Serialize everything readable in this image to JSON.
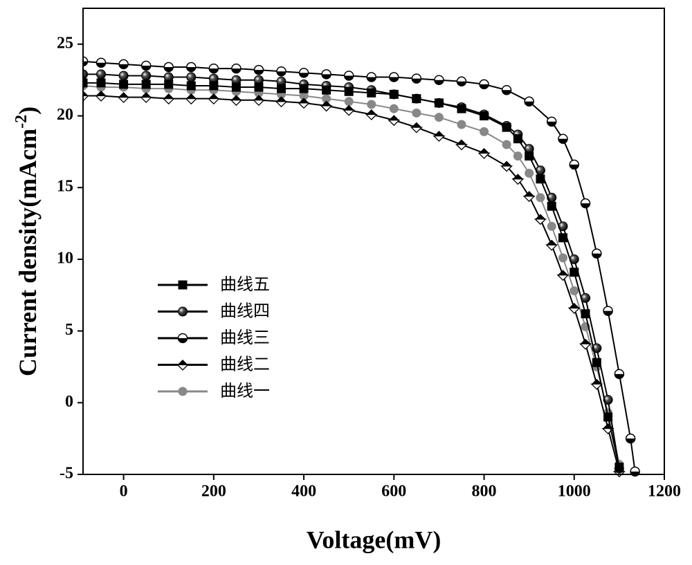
{
  "chart_data": {
    "type": "line",
    "xlabel": "Voltage(mV)",
    "ylabel": {
      "text": "Current density(mAcm",
      "sup": "-2",
      "end": ")"
    },
    "xlim": [
      -90,
      1200
    ],
    "ylim": [
      -5,
      27.5
    ],
    "xticks": [
      0,
      200,
      400,
      600,
      800,
      1000,
      1200
    ],
    "yticks": [
      -5,
      0,
      5,
      10,
      15,
      20,
      25
    ],
    "legend": "center-left",
    "series": [
      {
        "name": "曲线五",
        "color": "#000000",
        "marker": "square",
        "x": [
          -90,
          -50,
          0,
          50,
          100,
          150,
          200,
          250,
          300,
          350,
          400,
          450,
          500,
          550,
          600,
          650,
          700,
          750,
          800,
          850,
          875,
          900,
          925,
          950,
          975,
          1000,
          1025,
          1050,
          1075,
          1100
        ],
        "values": [
          22.3,
          22.3,
          22.2,
          22.2,
          22.2,
          22.1,
          22.1,
          22.0,
          22.0,
          21.9,
          21.9,
          21.8,
          21.7,
          21.6,
          21.5,
          21.2,
          20.9,
          20.5,
          20.0,
          19.2,
          18.4,
          17.2,
          15.6,
          13.7,
          11.5,
          9.1,
          6.2,
          2.8,
          -1.0,
          -4.5
        ]
      },
      {
        "name": "曲线四",
        "color": "#000000",
        "marker": "ball",
        "x": [
          -90,
          -50,
          0,
          50,
          100,
          150,
          200,
          250,
          300,
          350,
          400,
          450,
          500,
          550,
          600,
          650,
          700,
          750,
          800,
          850,
          875,
          900,
          925,
          950,
          975,
          1000,
          1025,
          1050,
          1075,
          1100
        ],
        "values": [
          22.9,
          22.9,
          22.8,
          22.8,
          22.7,
          22.7,
          22.6,
          22.5,
          22.5,
          22.4,
          22.2,
          22.1,
          22.0,
          21.8,
          21.5,
          21.2,
          20.9,
          20.6,
          20.1,
          19.3,
          18.7,
          17.7,
          16.2,
          14.3,
          12.3,
          10.0,
          7.3,
          3.8,
          0.2,
          -4.6
        ]
      },
      {
        "name": "曲线三",
        "color": "#000000",
        "marker": "halfcircle",
        "x": [
          -90,
          -50,
          0,
          50,
          100,
          150,
          200,
          250,
          300,
          350,
          400,
          450,
          500,
          550,
          600,
          650,
          700,
          750,
          800,
          850,
          900,
          950,
          975,
          1000,
          1025,
          1050,
          1075,
          1100,
          1125,
          1135
        ],
        "values": [
          23.8,
          23.7,
          23.6,
          23.5,
          23.4,
          23.4,
          23.3,
          23.3,
          23.2,
          23.1,
          23.0,
          22.9,
          22.8,
          22.7,
          22.7,
          22.6,
          22.5,
          22.4,
          22.2,
          21.8,
          21.0,
          19.6,
          18.4,
          16.6,
          13.9,
          10.4,
          6.4,
          2.0,
          -2.5,
          -4.8
        ]
      },
      {
        "name": "曲线二",
        "color": "#000000",
        "marker": "diamond",
        "x": [
          -90,
          -50,
          0,
          50,
          100,
          150,
          200,
          250,
          300,
          350,
          400,
          450,
          500,
          550,
          600,
          650,
          700,
          750,
          800,
          850,
          875,
          900,
          925,
          950,
          975,
          1000,
          1025,
          1050,
          1075,
          1100
        ],
        "values": [
          21.4,
          21.4,
          21.3,
          21.3,
          21.2,
          21.2,
          21.2,
          21.1,
          21.1,
          21.0,
          20.9,
          20.7,
          20.4,
          20.1,
          19.7,
          19.2,
          18.6,
          18.0,
          17.4,
          16.5,
          15.6,
          14.4,
          12.8,
          11.0,
          8.9,
          6.6,
          4.1,
          1.3,
          -1.8,
          -4.8
        ]
      },
      {
        "name": "曲线一",
        "color": "#888888",
        "marker": "circle",
        "x": [
          -90,
          -50,
          0,
          50,
          100,
          150,
          200,
          250,
          300,
          350,
          400,
          450,
          500,
          550,
          600,
          650,
          700,
          750,
          800,
          850,
          875,
          900,
          925,
          950,
          975,
          1000,
          1025,
          1050,
          1075,
          1100
        ],
        "values": [
          22.1,
          22.0,
          22.0,
          21.9,
          21.9,
          21.8,
          21.8,
          21.7,
          21.6,
          21.5,
          21.4,
          21.2,
          21.0,
          20.8,
          20.5,
          20.2,
          19.9,
          19.4,
          18.9,
          18.0,
          17.2,
          16.0,
          14.3,
          12.3,
          10.1,
          7.8,
          5.3,
          2.5,
          -0.7,
          -4.3
        ]
      }
    ]
  }
}
